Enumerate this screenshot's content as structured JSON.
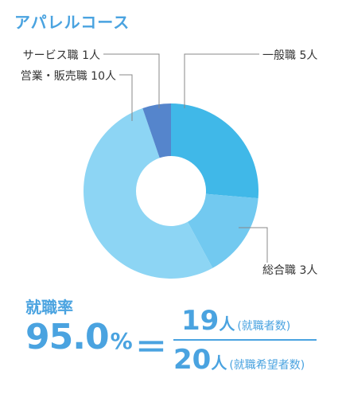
{
  "course_title": "アパレルコース",
  "colors": {
    "accent": "#4aa3e0",
    "leader_line": "#888888",
    "slices": [
      "#40b8e8",
      "#72c9f0",
      "#8dd5f4",
      "#5585cc"
    ]
  },
  "chart_data": {
    "type": "pie",
    "donut": true,
    "title": "",
    "slices": [
      {
        "label": "一般職",
        "count_text": "5人",
        "value": 5
      },
      {
        "label": "総合職",
        "count_text": "3人",
        "value": 3
      },
      {
        "label": "営業・販売職",
        "count_text": "10人",
        "value": 10
      },
      {
        "label": "サービス職",
        "count_text": "1人",
        "value": 1
      }
    ]
  },
  "employment": {
    "label": "就職率",
    "rate": "95.0",
    "rate_unit": "%",
    "equals": "＝",
    "employed_count": "19",
    "employed_unit": "人",
    "employed_note": "(就職者数)",
    "applicants_count": "20",
    "applicants_unit": "人",
    "applicants_note": "(就職希望者数)"
  }
}
